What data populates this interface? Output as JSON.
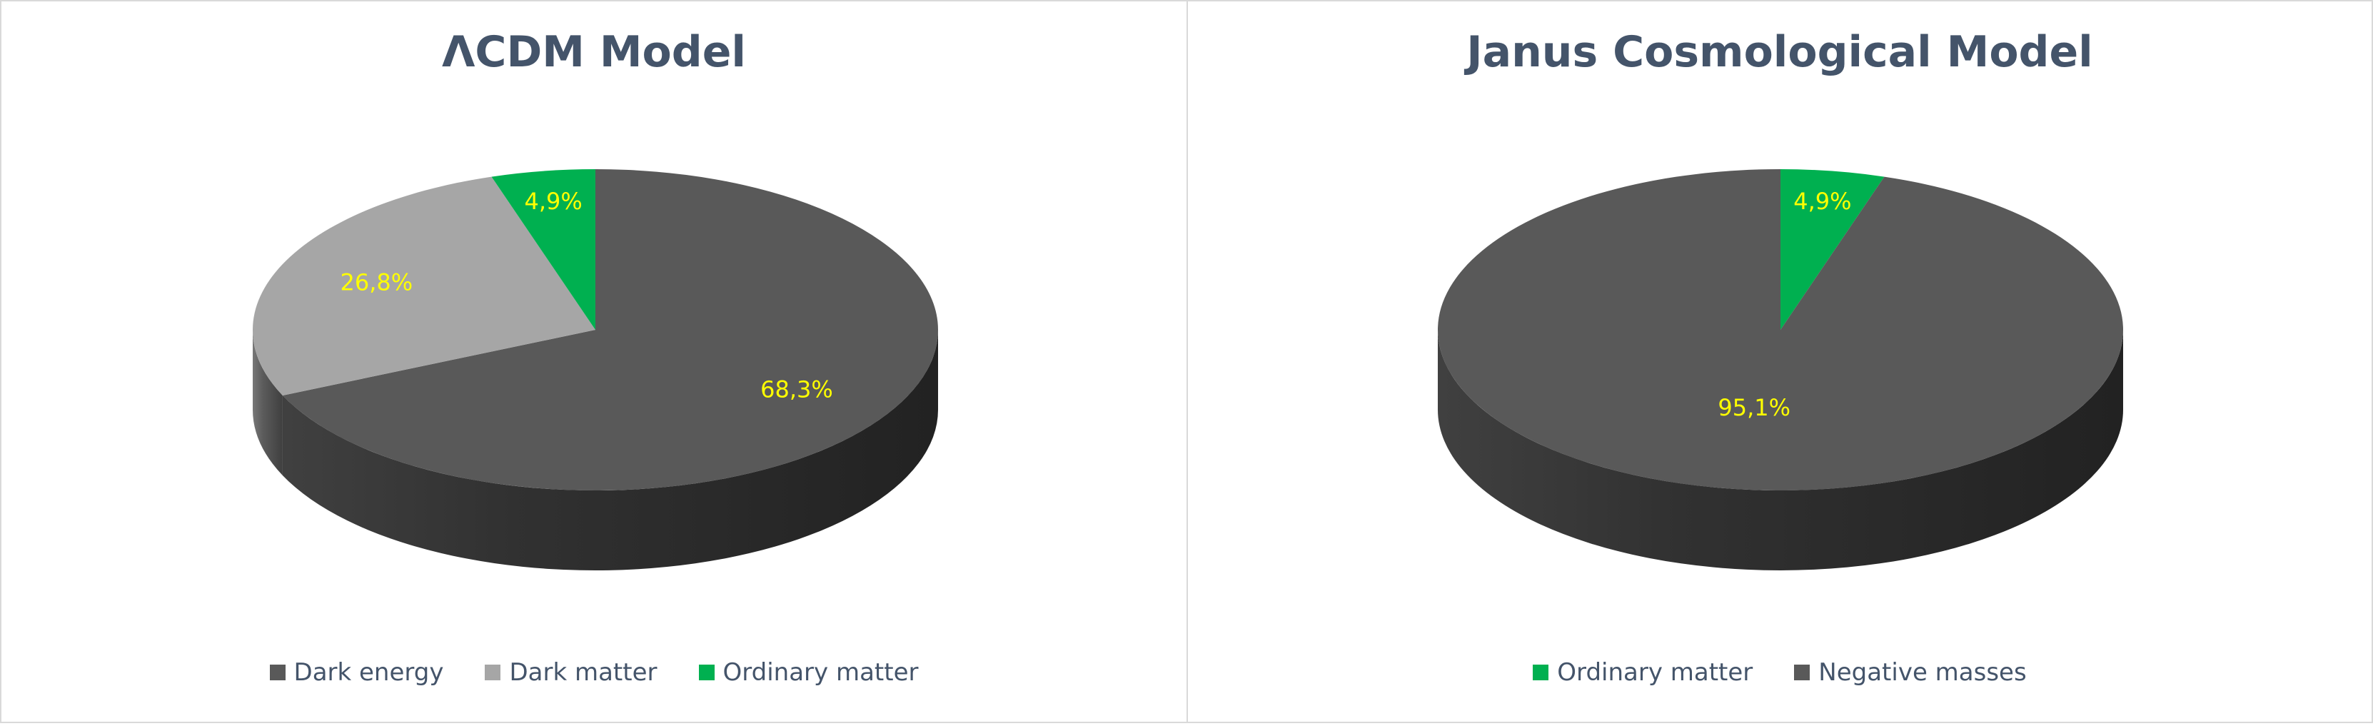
{
  "chart_data": [
    {
      "type": "pie",
      "title": "ΛCDM Model",
      "slices": [
        {
          "label": "Dark energy",
          "value": 68.3,
          "value_label": "68,3%",
          "color": "#595959"
        },
        {
          "label": "Dark matter",
          "value": 26.8,
          "value_label": "26,8%",
          "color": "#a6a6a6"
        },
        {
          "label": "Ordinary matter",
          "value": 4.9,
          "value_label": "4,9%",
          "color": "#00b050"
        }
      ],
      "legend_position": "bottom",
      "label_color": "#ffff00",
      "style": "3d"
    },
    {
      "type": "pie",
      "title": "Janus Cosmological Model",
      "slices": [
        {
          "label": "Ordinary matter",
          "value": 4.9,
          "value_label": "4,9%",
          "color": "#00b050"
        },
        {
          "label": "Negative masses",
          "value": 95.1,
          "value_label": "95,1%",
          "color": "#595959"
        }
      ],
      "legend_position": "bottom",
      "label_color": "#ffff00",
      "style": "3d"
    }
  ]
}
